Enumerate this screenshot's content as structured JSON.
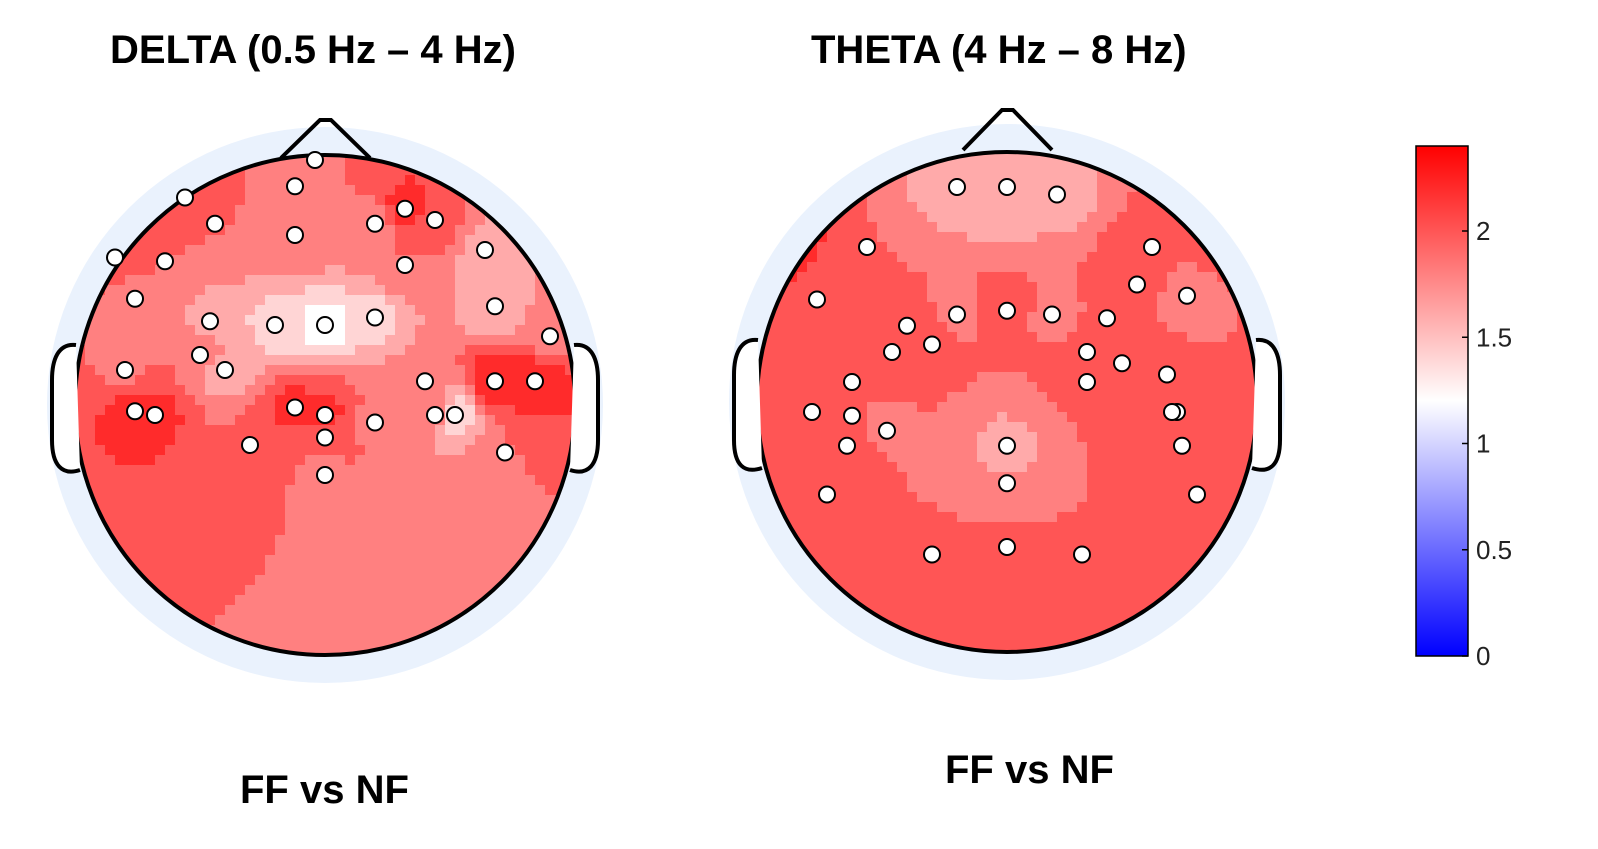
{
  "chart_data": [
    {
      "type": "heatmap",
      "subtype": "scalp-topography",
      "title": "DELTA (0.5 Hz – 4 Hz)",
      "caption": "FF vs NF",
      "colorbar": {
        "min": 0,
        "max": 2.4,
        "ticks": [
          "0",
          "0.5",
          "1",
          "1.5",
          "2"
        ],
        "colormap": [
          "#0000ff",
          "#ffffff",
          "#ff0000"
        ],
        "mid": 1.2
      },
      "electrodes": [
        {
          "x": 0.22,
          "y": 0.28,
          "v": 2.0
        },
        {
          "x": 0.44,
          "y": 0.25,
          "v": 1.9
        },
        {
          "x": 0.66,
          "y": 0.31,
          "v": 2.2
        },
        {
          "x": 0.72,
          "y": 0.34,
          "v": 2.0
        },
        {
          "x": 0.28,
          "y": 0.35,
          "v": 1.9
        },
        {
          "x": 0.44,
          "y": 0.38,
          "v": 1.9
        },
        {
          "x": 0.6,
          "y": 0.35,
          "v": 1.8
        },
        {
          "x": 0.48,
          "y": 0.18,
          "v": 1.9
        },
        {
          "x": 0.08,
          "y": 0.44,
          "v": 2.1
        },
        {
          "x": 0.18,
          "y": 0.45,
          "v": 1.9
        },
        {
          "x": 0.66,
          "y": 0.46,
          "v": 1.9
        },
        {
          "x": 0.82,
          "y": 0.42,
          "v": 1.6
        },
        {
          "x": 0.12,
          "y": 0.55,
          "v": 1.8
        },
        {
          "x": 0.27,
          "y": 0.61,
          "v": 1.6
        },
        {
          "x": 0.5,
          "y": 0.62,
          "v": 1.2
        },
        {
          "x": 0.4,
          "y": 0.62,
          "v": 1.4
        },
        {
          "x": 0.6,
          "y": 0.6,
          "v": 1.45
        },
        {
          "x": 0.84,
          "y": 0.57,
          "v": 1.5
        },
        {
          "x": 0.25,
          "y": 0.7,
          "v": 1.9
        },
        {
          "x": 0.1,
          "y": 0.74,
          "v": 1.85
        },
        {
          "x": 0.3,
          "y": 0.74,
          "v": 1.55
        },
        {
          "x": 0.7,
          "y": 0.77,
          "v": 1.85
        },
        {
          "x": 0.92,
          "y": 0.77,
          "v": 2.25
        },
        {
          "x": 0.84,
          "y": 0.77,
          "v": 2.3
        },
        {
          "x": 0.12,
          "y": 0.85,
          "v": 2.2
        },
        {
          "x": 0.16,
          "y": 0.86,
          "v": 2.15
        },
        {
          "x": 0.44,
          "y": 0.84,
          "v": 2.15
        },
        {
          "x": 0.5,
          "y": 0.86,
          "v": 2.15
        },
        {
          "x": 0.35,
          "y": 0.94,
          "v": 1.95
        },
        {
          "x": 0.6,
          "y": 0.88,
          "v": 1.85
        },
        {
          "x": 0.76,
          "y": 0.86,
          "v": 1.35
        },
        {
          "x": 0.72,
          "y": 0.86,
          "v": 1.8
        },
        {
          "x": 0.5,
          "y": 0.92,
          "v": 1.95
        },
        {
          "x": 0.5,
          "y": 1.02,
          "v": 1.85
        },
        {
          "x": 0.86,
          "y": 0.96,
          "v": 1.9
        },
        {
          "x": 0.95,
          "y": 0.65,
          "v": 1.85
        }
      ]
    },
    {
      "type": "heatmap",
      "subtype": "scalp-topography",
      "title": "THETA (4 Hz – 8 Hz)",
      "caption": "FF vs NF",
      "colorbar": {
        "min": 0,
        "max": 2.4,
        "ticks": [
          "0",
          "0.5",
          "1",
          "1.5",
          "2"
        ],
        "colormap": [
          "#0000ff",
          "#ffffff",
          "#ff0000"
        ],
        "mid": 1.2
      },
      "electrodes": [
        {
          "x": 0.06,
          "y": 0.42,
          "v": 2.25
        },
        {
          "x": 0.22,
          "y": 0.42,
          "v": 1.9
        },
        {
          "x": 0.12,
          "y": 0.56,
          "v": 1.95
        },
        {
          "x": 0.3,
          "y": 0.63,
          "v": 1.95
        },
        {
          "x": 0.4,
          "y": 0.6,
          "v": 1.85
        },
        {
          "x": 0.5,
          "y": 0.59,
          "v": 2.0
        },
        {
          "x": 0.59,
          "y": 0.6,
          "v": 1.85
        },
        {
          "x": 0.7,
          "y": 0.61,
          "v": 1.9
        },
        {
          "x": 0.79,
          "y": 0.42,
          "v": 2.0
        },
        {
          "x": 0.76,
          "y": 0.52,
          "v": 2.1
        },
        {
          "x": 0.86,
          "y": 0.55,
          "v": 1.7
        },
        {
          "x": 0.94,
          "y": 0.42,
          "v": 2.1
        },
        {
          "x": 0.27,
          "y": 0.7,
          "v": 2.05
        },
        {
          "x": 0.35,
          "y": 0.68,
          "v": 1.95
        },
        {
          "x": 0.66,
          "y": 0.7,
          "v": 1.95
        },
        {
          "x": 0.73,
          "y": 0.73,
          "v": 1.9
        },
        {
          "x": 0.19,
          "y": 0.78,
          "v": 1.9
        },
        {
          "x": 0.66,
          "y": 0.78,
          "v": 1.95
        },
        {
          "x": 0.82,
          "y": 0.76,
          "v": 2.0
        },
        {
          "x": 0.11,
          "y": 0.86,
          "v": 1.9
        },
        {
          "x": 0.19,
          "y": 0.87,
          "v": 1.9
        },
        {
          "x": 0.84,
          "y": 0.86,
          "v": 2.05
        },
        {
          "x": 0.26,
          "y": 0.91,
          "v": 1.85
        },
        {
          "x": 0.83,
          "y": 0.86,
          "v": 2.1
        },
        {
          "x": 0.18,
          "y": 0.95,
          "v": 2.05
        },
        {
          "x": 0.85,
          "y": 0.95,
          "v": 1.95
        },
        {
          "x": 0.14,
          "y": 1.08,
          "v": 1.9
        },
        {
          "x": 0.88,
          "y": 1.08,
          "v": 1.9
        },
        {
          "x": 0.35,
          "y": 1.24,
          "v": 1.95
        },
        {
          "x": 0.5,
          "y": 1.22,
          "v": 2.0
        },
        {
          "x": 0.65,
          "y": 1.24,
          "v": 1.95
        },
        {
          "x": 0.5,
          "y": 0.26,
          "v": 1.5
        },
        {
          "x": 0.4,
          "y": 0.26,
          "v": 1.55
        },
        {
          "x": 0.6,
          "y": 0.28,
          "v": 1.6
        },
        {
          "x": 0.5,
          "y": 0.95,
          "v": 1.65
        },
        {
          "x": 0.5,
          "y": 1.05,
          "v": 1.7
        }
      ]
    }
  ]
}
